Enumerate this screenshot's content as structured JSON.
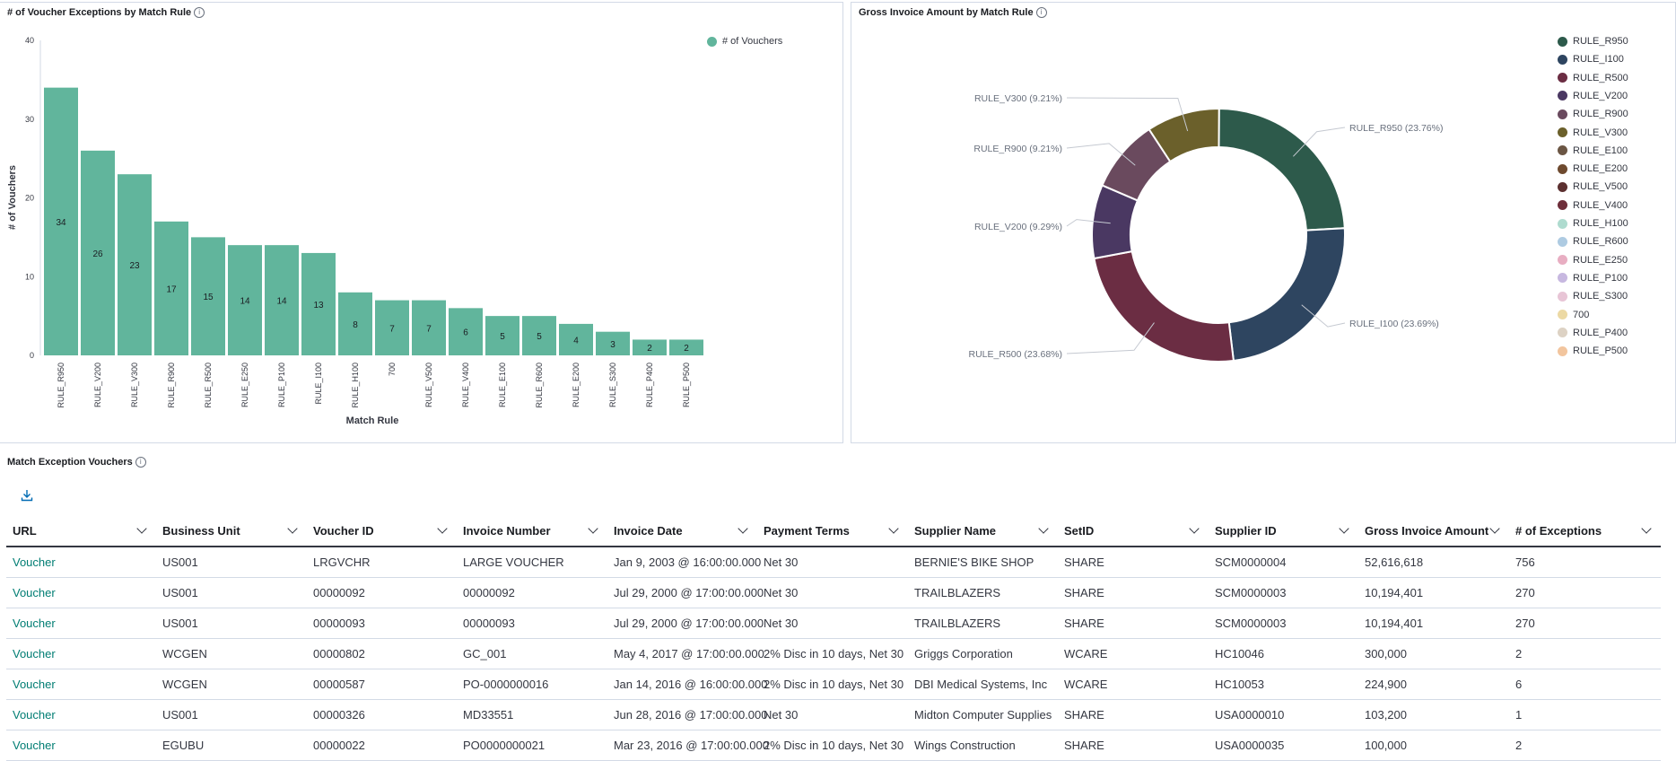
{
  "bar_panel": {
    "title": "# of Voucher Exceptions by Match Rule",
    "legend_label": "# of Vouchers",
    "bar_color": "#61b59c"
  },
  "pie_panel": {
    "title": "Gross Invoice Amount by Match Rule",
    "slice_labels": [
      "RULE_R950 (23.76%)",
      "RULE_I100 (23.69%)",
      "RULE_R500 (23.68%)",
      "RULE_V200 (9.29%)",
      "RULE_R900 (9.21%)",
      "RULE_V300 (9.21%)"
    ],
    "legend": [
      {
        "label": "RULE_R950",
        "color": "#2d5a4b"
      },
      {
        "label": "RULE_I100",
        "color": "#2e4560"
      },
      {
        "label": "RULE_R500",
        "color": "#6b2d43"
      },
      {
        "label": "RULE_V200",
        "color": "#4a3862"
      },
      {
        "label": "RULE_R900",
        "color": "#6a4a5e"
      },
      {
        "label": "RULE_V300",
        "color": "#6b602b"
      },
      {
        "label": "RULE_E100",
        "color": "#6b5644"
      },
      {
        "label": "RULE_E200",
        "color": "#6e4a2f"
      },
      {
        "label": "RULE_V500",
        "color": "#5c3030"
      },
      {
        "label": "RULE_V400",
        "color": "#6e2e3a"
      },
      {
        "label": "RULE_H100",
        "color": "#aedbcf"
      },
      {
        "label": "RULE_R600",
        "color": "#aecbe2"
      },
      {
        "label": "RULE_E250",
        "color": "#e8aec2"
      },
      {
        "label": "RULE_P100",
        "color": "#c7b8e0"
      },
      {
        "label": "RULE_S300",
        "color": "#e8c5d6"
      },
      {
        "label": "700",
        "color": "#ecd9a4"
      },
      {
        "label": "RULE_P400",
        "color": "#ddd2c4"
      },
      {
        "label": "RULE_P500",
        "color": "#f2c59e"
      }
    ]
  },
  "chart_data": [
    {
      "type": "bar",
      "title": "# of Voucher Exceptions by Match Rule",
      "xlabel": "Match Rule",
      "ylabel": "# of Vouchers",
      "ylim": [
        0,
        40
      ],
      "yticks": [
        0,
        10,
        20,
        30,
        40
      ],
      "categories": [
        "RULE_R950",
        "RULE_V200",
        "RULE_V300",
        "RULE_R900",
        "RULE_R500",
        "RULE_E250",
        "RULE_P100",
        "RULE_I100",
        "RULE_H100",
        "700",
        "RULE_V500",
        "RULE_V400",
        "RULE_E100",
        "RULE_R600",
        "RULE_E200",
        "RULE_S300",
        "RULE_P400",
        "RULE_P500"
      ],
      "series": [
        {
          "name": "# of Vouchers",
          "values": [
            34,
            26,
            23,
            17,
            15,
            14,
            14,
            13,
            8,
            7,
            7,
            6,
            5,
            5,
            4,
            3,
            2,
            2
          ]
        }
      ],
      "legend": "top-right"
    },
    {
      "type": "pie",
      "title": "Gross Invoice Amount by Match Rule",
      "donut": true,
      "slices": [
        {
          "label": "RULE_R950",
          "percent": 23.76
        },
        {
          "label": "RULE_I100",
          "percent": 23.69
        },
        {
          "label": "RULE_R500",
          "percent": 23.68
        },
        {
          "label": "RULE_V200",
          "percent": 9.29
        },
        {
          "label": "RULE_R900",
          "percent": 9.21
        },
        {
          "label": "RULE_V300",
          "percent": 9.21
        }
      ],
      "legend": "right"
    }
  ],
  "table_panel": {
    "title": "Match Exception Vouchers",
    "columns": [
      "URL",
      "Business Unit",
      "Voucher ID",
      "Invoice Number",
      "Invoice Date",
      "Payment Terms",
      "Supplier Name",
      "SetID",
      "Supplier ID",
      "Gross Invoice Amount",
      "# of Exceptions"
    ],
    "rows": [
      [
        "Voucher",
        "US001",
        "LRGVCHR",
        "LARGE VOUCHER",
        "Jan 9, 2003 @ 16:00:00.000",
        "Net 30",
        "BERNIE'S BIKE SHOP",
        "SHARE",
        "SCM0000004",
        "52,616,618",
        "756"
      ],
      [
        "Voucher",
        "US001",
        "00000092",
        "00000092",
        "Jul 29, 2000 @ 17:00:00.000",
        "Net 30",
        "TRAILBLAZERS",
        "SHARE",
        "SCM0000003",
        "10,194,401",
        "270"
      ],
      [
        "Voucher",
        "US001",
        "00000093",
        "00000093",
        "Jul 29, 2000 @ 17:00:00.000",
        "Net 30",
        "TRAILBLAZERS",
        "SHARE",
        "SCM0000003",
        "10,194,401",
        "270"
      ],
      [
        "Voucher",
        "WCGEN",
        "00000802",
        "GC_001",
        "May 4, 2017 @ 17:00:00.000",
        "2% Disc in 10 days, Net 30",
        "Griggs Corporation",
        "WCARE",
        "HC10046",
        "300,000",
        "2"
      ],
      [
        "Voucher",
        "WCGEN",
        "00000587",
        "PO-0000000016",
        "Jan 14, 2016 @ 16:00:00.000",
        "2% Disc in 10 days, Net 30",
        "DBI Medical Systems, Inc",
        "WCARE",
        "HC10053",
        "224,900",
        "6"
      ],
      [
        "Voucher",
        "US001",
        "00000326",
        "MD33551",
        "Jun 28, 2016 @ 17:00:00.000",
        "Net 30",
        "Midton Computer Supplies",
        "SHARE",
        "USA0000010",
        "103,200",
        "1"
      ],
      [
        "Voucher",
        "EGUBU",
        "00000022",
        "PO0000000021",
        "Mar 23, 2016 @ 17:00:00.000",
        "2% Disc in 10 days, Net 30",
        "Wings Construction",
        "SHARE",
        "USA0000035",
        "100,000",
        "2"
      ]
    ]
  }
}
